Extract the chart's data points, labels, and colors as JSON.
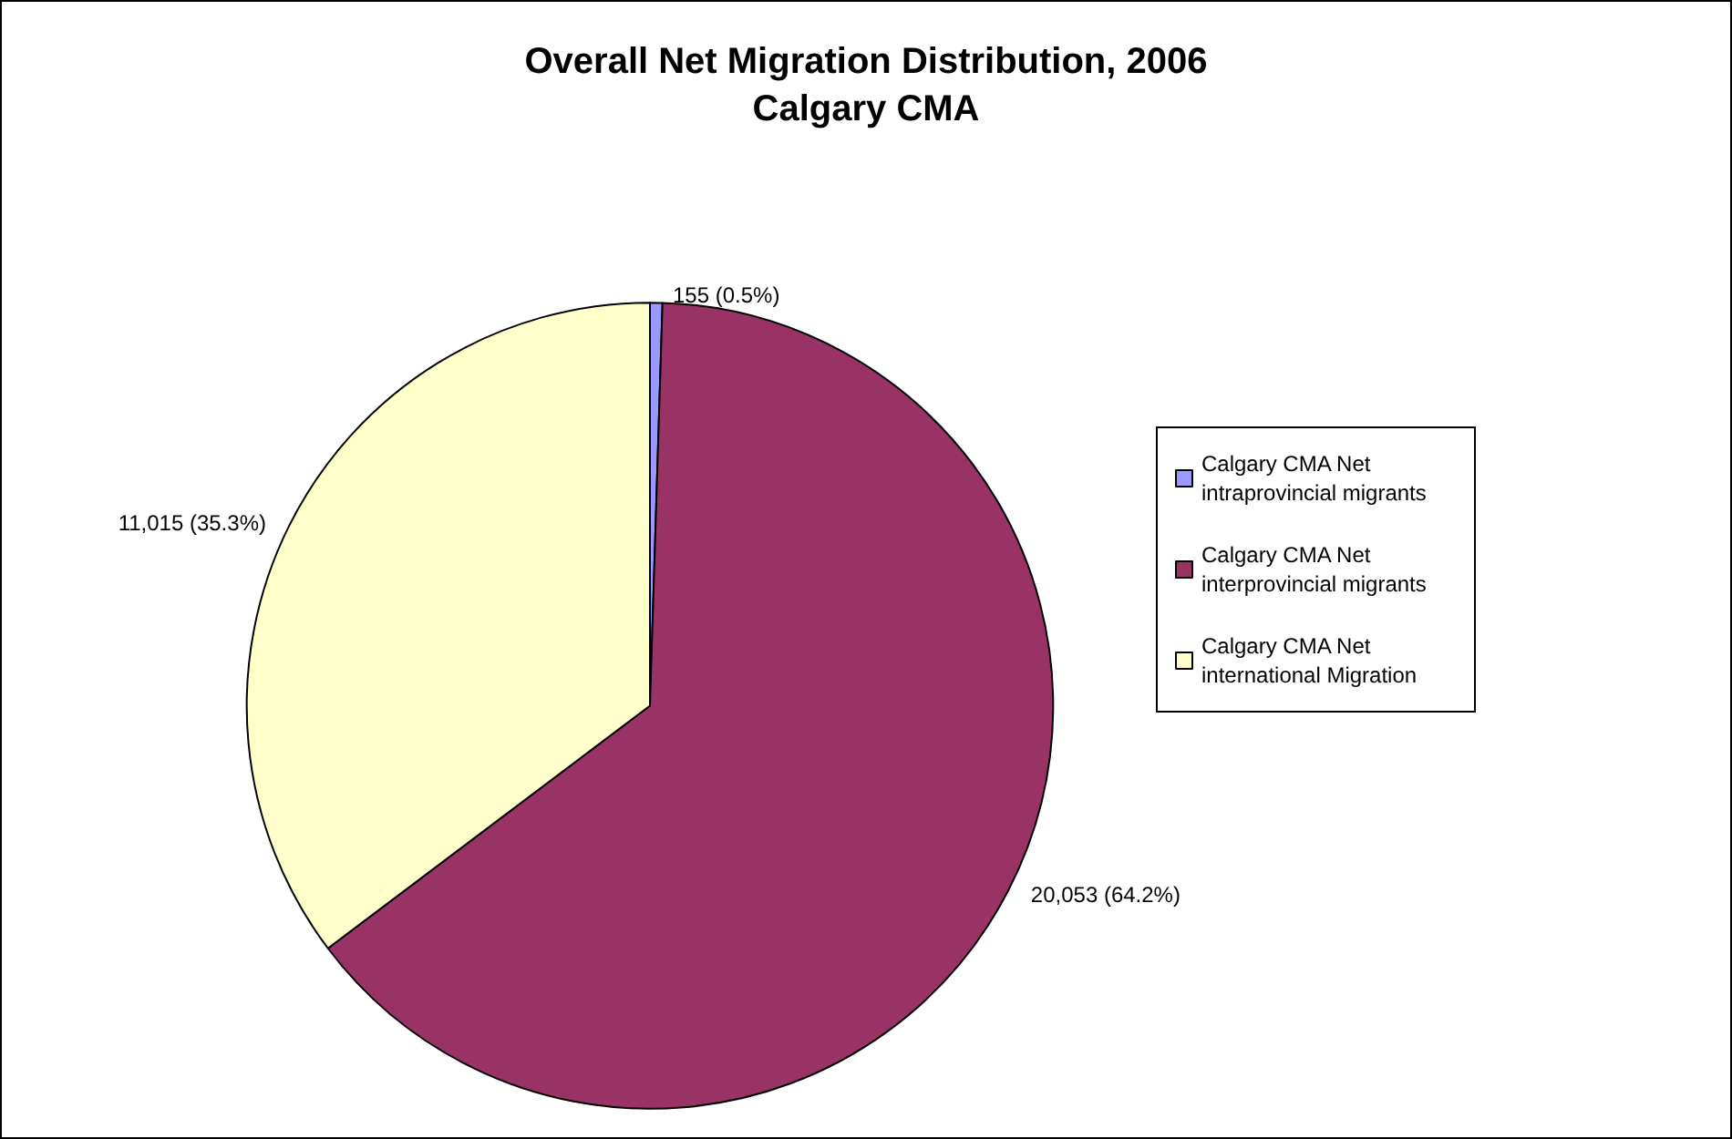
{
  "chart_data": {
    "type": "pie",
    "title": "Overall Net Migration Distribution, 2006",
    "subtitle": "Calgary CMA",
    "categories": [
      "Calgary CMA Net intraprovincial migrants",
      "Calgary CMA Net interprovincial migrants",
      "Calgary CMA Net international Migration"
    ],
    "values": [
      155,
      20053,
      11015
    ],
    "colors": [
      "#9999ff",
      "#993366",
      "#ffffcc"
    ],
    "value_labels": [
      "155 (0.5%)",
      "20,053 (64.2%)",
      "11,015 (35.3%)"
    ],
    "legend": "right"
  }
}
